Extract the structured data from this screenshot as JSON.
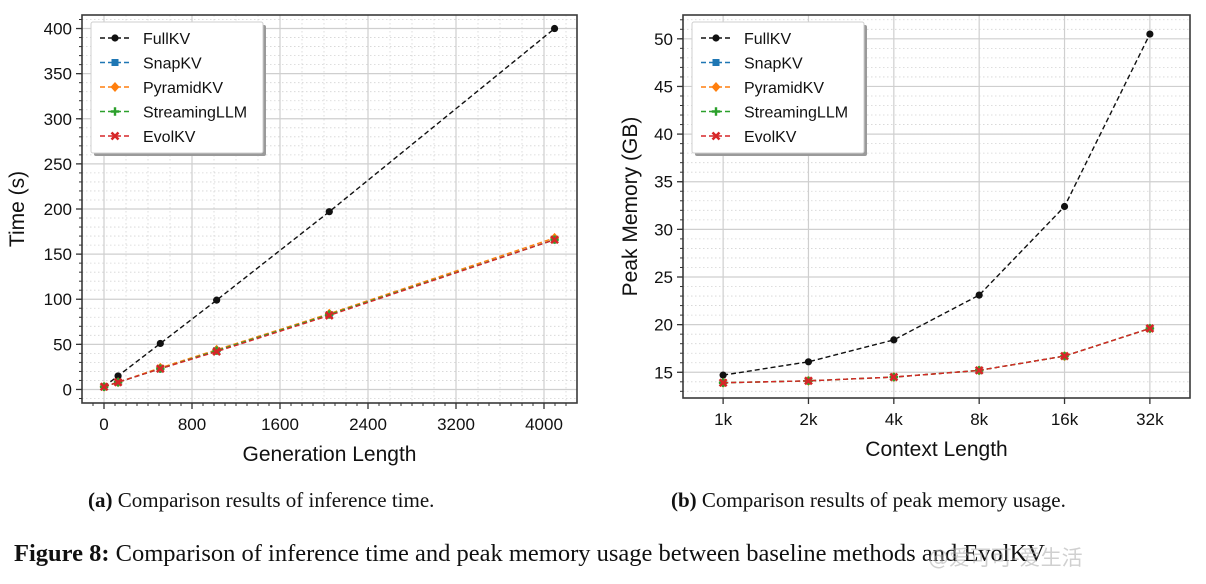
{
  "chart_data": [
    {
      "type": "line",
      "xlabel": "Generation Length",
      "ylabel": "Time (s)",
      "xlim": [
        -200,
        4300
      ],
      "ylim": [
        -15,
        415
      ],
      "xticks": [
        0,
        800,
        1600,
        2400,
        3200,
        4000
      ],
      "yticks": [
        0,
        50,
        100,
        150,
        200,
        250,
        300,
        350,
        400
      ],
      "grid": true,
      "legend_position": "top-left",
      "series": [
        {
          "name": "FullKV",
          "color": "#111111",
          "marker": "circle",
          "x": [
            1,
            128,
            512,
            1024,
            2048,
            4096
          ],
          "y": [
            3,
            15,
            51,
            99,
            197,
            400
          ]
        },
        {
          "name": "SnapKV",
          "color": "#1f77b4",
          "marker": "square",
          "x": [
            1,
            128,
            512,
            1024,
            2048,
            4096
          ],
          "y": [
            3,
            8,
            23,
            43,
            83,
            166
          ]
        },
        {
          "name": "PyramidKV",
          "color": "#ff7f0e",
          "marker": "diamond",
          "x": [
            1,
            128,
            512,
            1024,
            2048,
            4096
          ],
          "y": [
            3,
            8,
            24,
            44,
            84,
            168
          ]
        },
        {
          "name": "StreamingLLM",
          "color": "#2ca02c",
          "marker": "plus",
          "x": [
            1,
            128,
            512,
            1024,
            2048,
            4096
          ],
          "y": [
            3,
            8,
            23,
            43,
            83,
            166
          ]
        },
        {
          "name": "EvolKV",
          "color": "#d62728",
          "marker": "x",
          "x": [
            1,
            128,
            512,
            1024,
            2048,
            4096
          ],
          "y": [
            3,
            8,
            23,
            42,
            82,
            166
          ]
        }
      ]
    },
    {
      "type": "line",
      "xlabel": "Context Length",
      "ylabel": "Peak Memory (GB)",
      "categories": [
        "1k",
        "2k",
        "4k",
        "8k",
        "16k",
        "32k"
      ],
      "ylim": [
        12.3,
        52.5
      ],
      "yticks": [
        15,
        20,
        25,
        30,
        35,
        40,
        45,
        50
      ],
      "grid": true,
      "legend_position": "top-left",
      "series": [
        {
          "name": "FullKV",
          "color": "#111111",
          "marker": "circle",
          "values": [
            14.7,
            16.1,
            18.4,
            23.1,
            32.4,
            50.5
          ]
        },
        {
          "name": "SnapKV",
          "color": "#1f77b4",
          "marker": "square",
          "values": [
            13.9,
            14.1,
            14.5,
            15.2,
            16.7,
            19.6
          ]
        },
        {
          "name": "PyramidKV",
          "color": "#ff7f0e",
          "marker": "diamond",
          "values": [
            13.9,
            14.1,
            14.5,
            15.2,
            16.7,
            19.6
          ]
        },
        {
          "name": "StreamingLLM",
          "color": "#2ca02c",
          "marker": "plus",
          "values": [
            13.9,
            14.1,
            14.5,
            15.2,
            16.7,
            19.6
          ]
        },
        {
          "name": "EvolKV",
          "color": "#d62728",
          "marker": "x",
          "values": [
            13.9,
            14.1,
            14.5,
            15.2,
            16.7,
            19.6
          ]
        }
      ]
    }
  ],
  "captions": {
    "a_label": "(a)",
    "a_text": " Comparison results of inference time.",
    "b_label": "(b)",
    "b_text": " Comparison results of peak memory usage.",
    "figure_label": "Figure 8:",
    "figure_text": " Comparison of inference time and peak memory usage between baseline methods and EvolKV"
  },
  "watermark": "@爱可可-爱生活"
}
